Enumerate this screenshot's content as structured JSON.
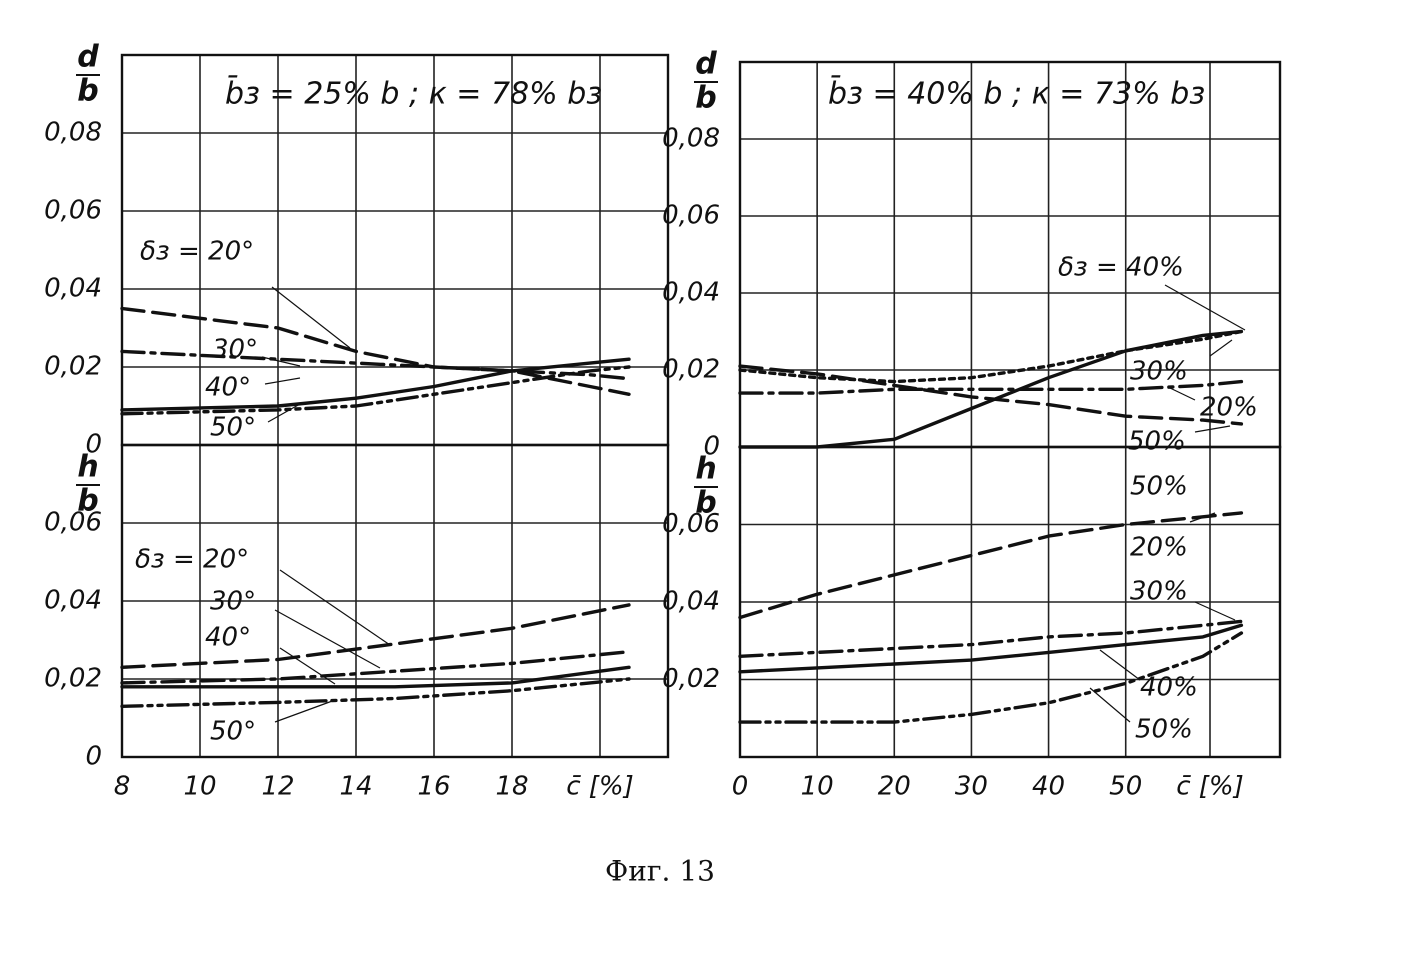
{
  "chart_data": [
    {
      "type": "line",
      "title": "b̄з = 25% b ; к = 78% bз",
      "ylabel": {
        "numerator": "d",
        "denominator": "b"
      },
      "x": [
        8,
        12,
        14,
        16,
        18,
        20,
        21
      ],
      "xlim": [
        8,
        22
      ],
      "ylim": [
        0,
        0.1
      ],
      "yticks": [
        0,
        {
          "value": 0.02,
          "label": "0,02"
        },
        {
          "value": 0.04,
          "label": "0,04"
        },
        {
          "value": 0.06,
          "label": "0,06"
        },
        {
          "value": 0.08,
          "label": "0,08"
        }
      ],
      "series": [
        {
          "name": "δз = 20°",
          "color": "#111111",
          "style": "dashed",
          "values": [
            0.035,
            0.03,
            0.024,
            0.02,
            0.019,
            0.015,
            0.013
          ]
        },
        {
          "name": "30°",
          "color": "#111111",
          "style": "dash-dot",
          "values": [
            0.024,
            0.022,
            0.021,
            0.02,
            0.019,
            0.018,
            0.017
          ]
        },
        {
          "name": "40°",
          "color": "#111111",
          "style": "solid",
          "values": [
            0.009,
            0.01,
            0.012,
            0.015,
            0.019,
            0.021,
            0.022
          ]
        },
        {
          "name": "50°",
          "color": "#111111",
          "style": "dash-dot-dot",
          "values": [
            0.008,
            0.009,
            0.01,
            0.013,
            0.016,
            0.019,
            0.02
          ]
        }
      ],
      "grid": true
    },
    {
      "type": "line",
      "ylabel": {
        "numerator": "h",
        "denominator": "b"
      },
      "xlabel": "c̄ [%]",
      "x": [
        8,
        12,
        15,
        18,
        21
      ],
      "xlim": [
        8,
        22
      ],
      "ylim": [
        0,
        0.08
      ],
      "xticks": [
        8,
        10,
        12,
        14,
        16,
        18
      ],
      "yticks": [
        0,
        {
          "value": 0.02,
          "label": "0,02"
        },
        {
          "value": 0.04,
          "label": "0,04"
        },
        {
          "value": 0.06,
          "label": "0,06"
        }
      ],
      "series": [
        {
          "name": "δз = 20°",
          "color": "#111111",
          "style": "dashed",
          "values": [
            0.023,
            0.025,
            0.029,
            0.033,
            0.039
          ]
        },
        {
          "name": "30°",
          "color": "#111111",
          "style": "dash-dot",
          "values": [
            0.019,
            0.02,
            0.022,
            0.024,
            0.027
          ]
        },
        {
          "name": "40°",
          "color": "#111111",
          "style": "solid",
          "values": [
            0.018,
            0.018,
            0.018,
            0.019,
            0.023
          ]
        },
        {
          "name": "50°",
          "color": "#111111",
          "style": "dash-dot-dot",
          "values": [
            0.013,
            0.014,
            0.015,
            0.017,
            0.02
          ]
        }
      ],
      "grid": true
    },
    {
      "type": "line",
      "title": "b̄з = 40% b ; к = 73% bз",
      "ylabel": {
        "numerator": "d",
        "denominator": "b"
      },
      "x": [
        0,
        10,
        20,
        30,
        40,
        50,
        60,
        65
      ],
      "xlim": [
        0,
        70
      ],
      "ylim": [
        0,
        0.1
      ],
      "yticks": [
        0,
        {
          "value": 0.02,
          "label": "0,02"
        },
        {
          "value": 0.04,
          "label": "0,04"
        },
        {
          "value": 0.06,
          "label": "0,06"
        },
        {
          "value": 0.08,
          "label": "0,08"
        }
      ],
      "series": [
        {
          "name": "δз = 40%",
          "color": "#111111",
          "style": "solid",
          "values": [
            0,
            0,
            0.002,
            0.01,
            0.018,
            0.025,
            0.029,
            0.03
          ]
        },
        {
          "name": "30%",
          "color": "#111111",
          "style": "dotted",
          "values": [
            0.02,
            0.018,
            0.017,
            0.018,
            0.021,
            0.025,
            0.028,
            0.03
          ]
        },
        {
          "name": "20%",
          "color": "#111111",
          "style": "dash-dot",
          "values": [
            0.014,
            0.014,
            0.015,
            0.015,
            0.015,
            0.015,
            0.016,
            0.017
          ]
        },
        {
          "name": "50%",
          "color": "#111111",
          "style": "dashed",
          "values": [
            0.021,
            0.019,
            0.016,
            0.013,
            0.011,
            0.008,
            0.007,
            0.006
          ]
        }
      ],
      "grid": true
    },
    {
      "type": "line",
      "ylabel": {
        "numerator": "h",
        "denominator": "b"
      },
      "xlabel": "c̄ [%]",
      "annotations": [
        "50%"
      ],
      "x": [
        0,
        10,
        20,
        30,
        40,
        50,
        60,
        65
      ],
      "xlim": [
        0,
        70
      ],
      "ylim": [
        0,
        0.08
      ],
      "xticks": [
        0,
        10,
        20,
        30,
        40,
        50
      ],
      "yticks": [
        {
          "value": 0.02,
          "label": "0,02"
        },
        {
          "value": 0.04,
          "label": "0,04"
        },
        {
          "value": 0.06,
          "label": "0,06"
        }
      ],
      "series": [
        {
          "name": "20%",
          "color": "#111111",
          "style": "dashed",
          "values": [
            0.036,
            0.042,
            0.047,
            0.052,
            0.057,
            0.06,
            0.062,
            0.063
          ]
        },
        {
          "name": "30%",
          "color": "#111111",
          "style": "dash-dot",
          "values": [
            0.026,
            0.027,
            0.028,
            0.029,
            0.031,
            0.032,
            0.034,
            0.035
          ]
        },
        {
          "name": "40%",
          "color": "#111111",
          "style": "solid",
          "values": [
            0.022,
            0.023,
            0.024,
            0.025,
            0.027,
            0.029,
            0.031,
            0.034
          ]
        },
        {
          "name": "50%",
          "color": "#111111",
          "style": "dash-dot-dot",
          "values": [
            0.009,
            0.009,
            0.009,
            0.011,
            0.014,
            0.019,
            0.026,
            0.032
          ]
        }
      ],
      "grid": true
    }
  ],
  "caption": "Фиг. 13"
}
